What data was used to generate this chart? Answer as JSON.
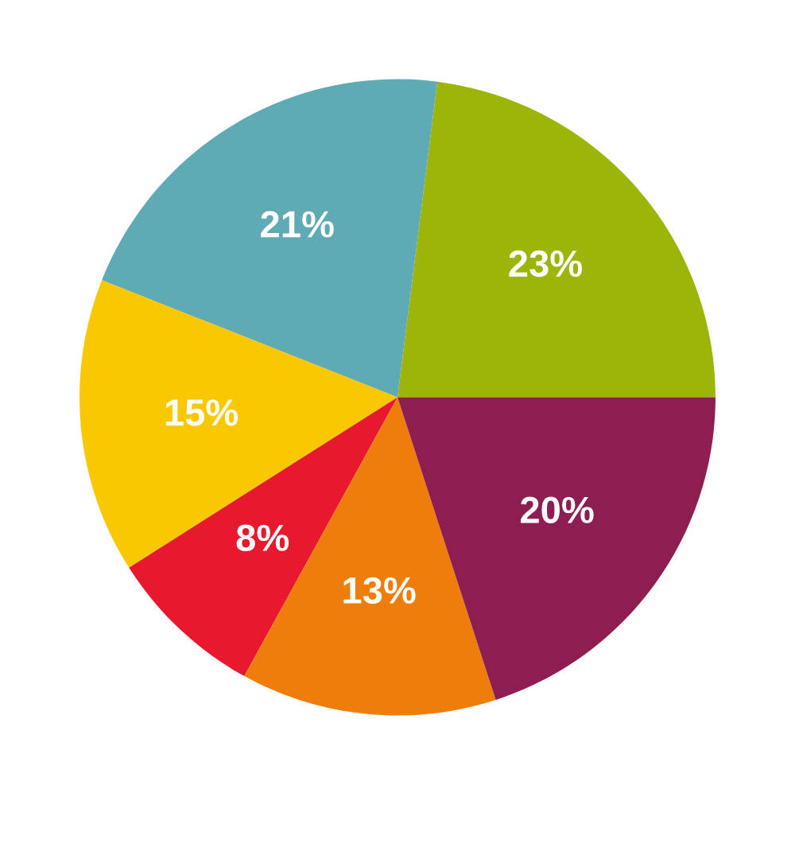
{
  "chart_data": {
    "type": "pie",
    "categories": [
      null,
      null,
      null,
      null,
      null,
      null
    ],
    "values": [
      23,
      21,
      15,
      8,
      13,
      20
    ],
    "colors": [
      "#9db508",
      "#5fabb5",
      "#f9c800",
      "#e8192f",
      "#ef7d0a",
      "#8e1d52"
    ],
    "value_labels": [
      "23%",
      "21%",
      "15%",
      "8%",
      "13%",
      "20%"
    ]
  }
}
